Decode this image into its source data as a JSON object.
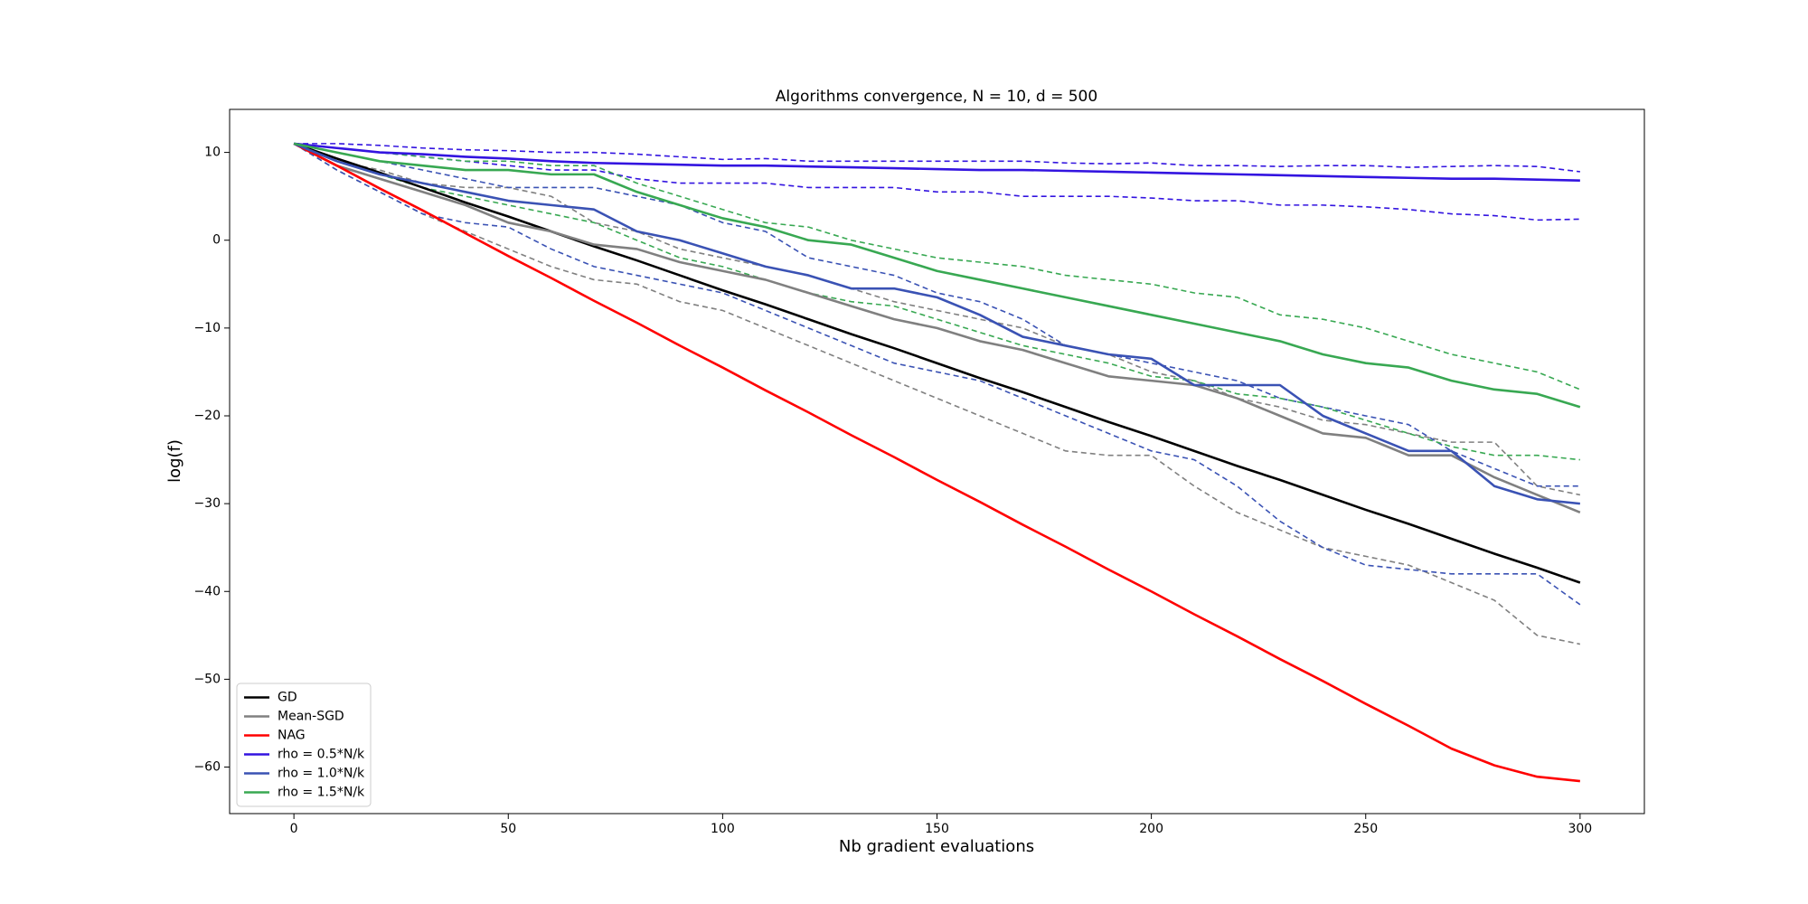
{
  "chart_data": {
    "type": "line",
    "title": "Algorithms convergence, N = 10, d = 500",
    "xlabel": "Nb gradient evaluations",
    "ylabel": "log(f)",
    "x": [
      0,
      10,
      20,
      30,
      40,
      50,
      60,
      70,
      80,
      90,
      100,
      110,
      120,
      130,
      140,
      150,
      160,
      170,
      180,
      190,
      200,
      210,
      220,
      230,
      240,
      250,
      260,
      270,
      280,
      290,
      300
    ],
    "xlim": [
      -15,
      315
    ],
    "ylim": [
      -65.3,
      14.9
    ],
    "xticks": [
      0,
      50,
      100,
      150,
      200,
      250,
      300
    ],
    "yticks": [
      {
        "value": 10,
        "label": "10"
      },
      {
        "value": 0,
        "label": "0"
      },
      {
        "value": -10,
        "label": "−10"
      },
      {
        "value": -20,
        "label": "−20"
      },
      {
        "value": -30,
        "label": "−30"
      },
      {
        "value": -40,
        "label": "−40"
      },
      {
        "value": -50,
        "label": "−50"
      },
      {
        "value": -60,
        "label": "−60"
      }
    ],
    "legend": "lower left",
    "series": [
      {
        "name": "GD",
        "color": "#000000",
        "style": "solid",
        "values": [
          11,
          9.3,
          7.7,
          6,
          4.3,
          2.7,
          1,
          -0.7,
          -2.3,
          -4,
          -5.7,
          -7.3,
          -9,
          -10.7,
          -12.3,
          -14,
          -15.7,
          -17.3,
          -19,
          -20.7,
          -22.3,
          -24,
          -25.7,
          -27.3,
          -29,
          -30.7,
          -32.3,
          -34,
          -35.7,
          -37.3,
          -39
        ]
      },
      {
        "name": "Mean-SGD",
        "color": "#808080",
        "style": "solid",
        "values": [
          11,
          8.5,
          7,
          5.5,
          4,
          2,
          1,
          -0.5,
          -1,
          -2.5,
          -3.5,
          -4.5,
          -6,
          -7.5,
          -9,
          -10,
          -11.5,
          -12.5,
          -14,
          -15.5,
          -16,
          -16.5,
          -18,
          -20,
          -22,
          -22.5,
          -24.5,
          -24.5,
          -27,
          -29,
          -31
        ]
      },
      {
        "color": "#808080",
        "style": "dashed",
        "values": [
          11,
          9,
          8,
          6.5,
          6,
          6,
          5,
          2,
          1,
          -1,
          -2,
          -3,
          -4,
          -5.5,
          -7,
          -8,
          -9,
          -10,
          -12,
          -13,
          -15,
          -16,
          -18,
          -19,
          -20.5,
          -21,
          -22,
          -23,
          -23,
          -28,
          -29
        ]
      },
      {
        "color": "#808080",
        "style": "dashed",
        "values": [
          11,
          8,
          5.5,
          3,
          1,
          -1,
          -3,
          -4.5,
          -5,
          -7,
          -8,
          -10,
          -12,
          -14,
          -16,
          -18,
          -20,
          -22,
          -24,
          -24.5,
          -24.5,
          -28,
          -31,
          -33,
          -35,
          -36,
          -37,
          -39,
          -41,
          -45,
          -46
        ]
      },
      {
        "name": "NAG",
        "color": "#ff0000",
        "style": "solid",
        "values": [
          11,
          8.5,
          5.9,
          3.4,
          0.8,
          -1.8,
          -4.3,
          -6.9,
          -9.4,
          -12,
          -14.5,
          -17.1,
          -19.6,
          -22.2,
          -24.7,
          -27.3,
          -29.8,
          -32.4,
          -34.9,
          -37.5,
          -40,
          -42.6,
          -45.1,
          -47.7,
          -50.2,
          -52.8,
          -55.3,
          -57.9,
          -59.8,
          -61.1,
          -61.6
        ]
      },
      {
        "name": "rho = 0.5*N/k",
        "color": "#3314e0",
        "style": "solid",
        "values": [
          11,
          10.5,
          10,
          9.8,
          9.5,
          9.3,
          9,
          8.8,
          8.7,
          8.6,
          8.5,
          8.5,
          8.4,
          8.3,
          8.2,
          8.1,
          8,
          8,
          7.9,
          7.8,
          7.7,
          7.6,
          7.5,
          7.4,
          7.3,
          7.2,
          7.1,
          7,
          7,
          6.9,
          6.8
        ]
      },
      {
        "color": "#3314e0",
        "style": "dashed",
        "values": [
          11,
          11,
          10.8,
          10.5,
          10.3,
          10.2,
          10,
          10,
          9.8,
          9.5,
          9.2,
          9.3,
          9,
          9,
          9,
          9,
          9,
          9,
          8.8,
          8.7,
          8.8,
          8.5,
          8.5,
          8.4,
          8.5,
          8.5,
          8.3,
          8.4,
          8.5,
          8.4,
          7.8
        ]
      },
      {
        "color": "#3314e0",
        "style": "dashed",
        "values": [
          11,
          10.5,
          10,
          9.5,
          9,
          8.5,
          8,
          8,
          7,
          6.5,
          6.5,
          6.5,
          6,
          6,
          6,
          5.5,
          5.5,
          5,
          5,
          5,
          4.8,
          4.5,
          4.5,
          4,
          4,
          3.8,
          3.5,
          3,
          2.8,
          2.3,
          2.4
        ]
      },
      {
        "name": "rho = 1.0*N/k",
        "color": "#3a52b4",
        "style": "solid",
        "values": [
          11,
          9,
          7.5,
          6.5,
          5.5,
          4.5,
          4,
          3.5,
          1,
          0,
          -1.5,
          -3,
          -4,
          -5.5,
          -5.5,
          -6.5,
          -8.5,
          -11,
          -12,
          -13,
          -13.5,
          -16.5,
          -16.5,
          -16.5,
          -20,
          -22,
          -24,
          -24,
          -28,
          -29.5,
          -30
        ]
      },
      {
        "color": "#3a52b4",
        "style": "dashed",
        "values": [
          11,
          10,
          9,
          8,
          7,
          6,
          6,
          6,
          5,
          4,
          2,
          1,
          -2,
          -3,
          -4,
          -6,
          -7,
          -9,
          -12,
          -13,
          -14,
          -15,
          -16,
          -18,
          -19,
          -20,
          -21,
          -24,
          -26,
          -28,
          -28
        ]
      },
      {
        "color": "#3a52b4",
        "style": "dashed",
        "values": [
          11,
          8,
          5.5,
          3,
          2,
          1.5,
          -1,
          -3,
          -4,
          -5,
          -6,
          -8,
          -10,
          -12,
          -14,
          -15,
          -16,
          -18,
          -20,
          -22,
          -24,
          -25,
          -28,
          -32,
          -35,
          -37,
          -37.5,
          -38,
          -38,
          -38,
          -41.5
        ]
      },
      {
        "name": "rho = 1.5*N/k",
        "color": "#38a852",
        "style": "solid",
        "values": [
          11,
          10,
          9,
          8.5,
          8,
          8,
          7.5,
          7.5,
          5.5,
          4,
          2.5,
          1.5,
          0,
          -0.5,
          -2,
          -3.5,
          -4.5,
          -5.5,
          -6.5,
          -7.5,
          -8.5,
          -9.5,
          -10.5,
          -11.5,
          -13,
          -14,
          -14.5,
          -16,
          -17,
          -17.5,
          -19
        ]
      },
      {
        "color": "#38a852",
        "style": "dashed",
        "values": [
          11,
          10.5,
          10,
          9.5,
          9,
          9,
          8.5,
          8.5,
          6.5,
          5,
          3.5,
          2,
          1.5,
          0,
          -1,
          -2,
          -2.5,
          -3,
          -4,
          -4.5,
          -5,
          -6,
          -6.5,
          -8.5,
          -9,
          -10,
          -11.5,
          -13,
          -14,
          -15,
          -17
        ]
      },
      {
        "color": "#38a852",
        "style": "dashed",
        "values": [
          11,
          9,
          7.5,
          6,
          5,
          4,
          3,
          2,
          0,
          -2,
          -3,
          -4.5,
          -6,
          -7,
          -7.5,
          -9,
          -10.5,
          -12,
          -13,
          -14,
          -15.5,
          -16,
          -17.5,
          -18,
          -19,
          -20.5,
          -22,
          -23.5,
          -24.5,
          -24.5,
          -25
        ]
      }
    ]
  }
}
